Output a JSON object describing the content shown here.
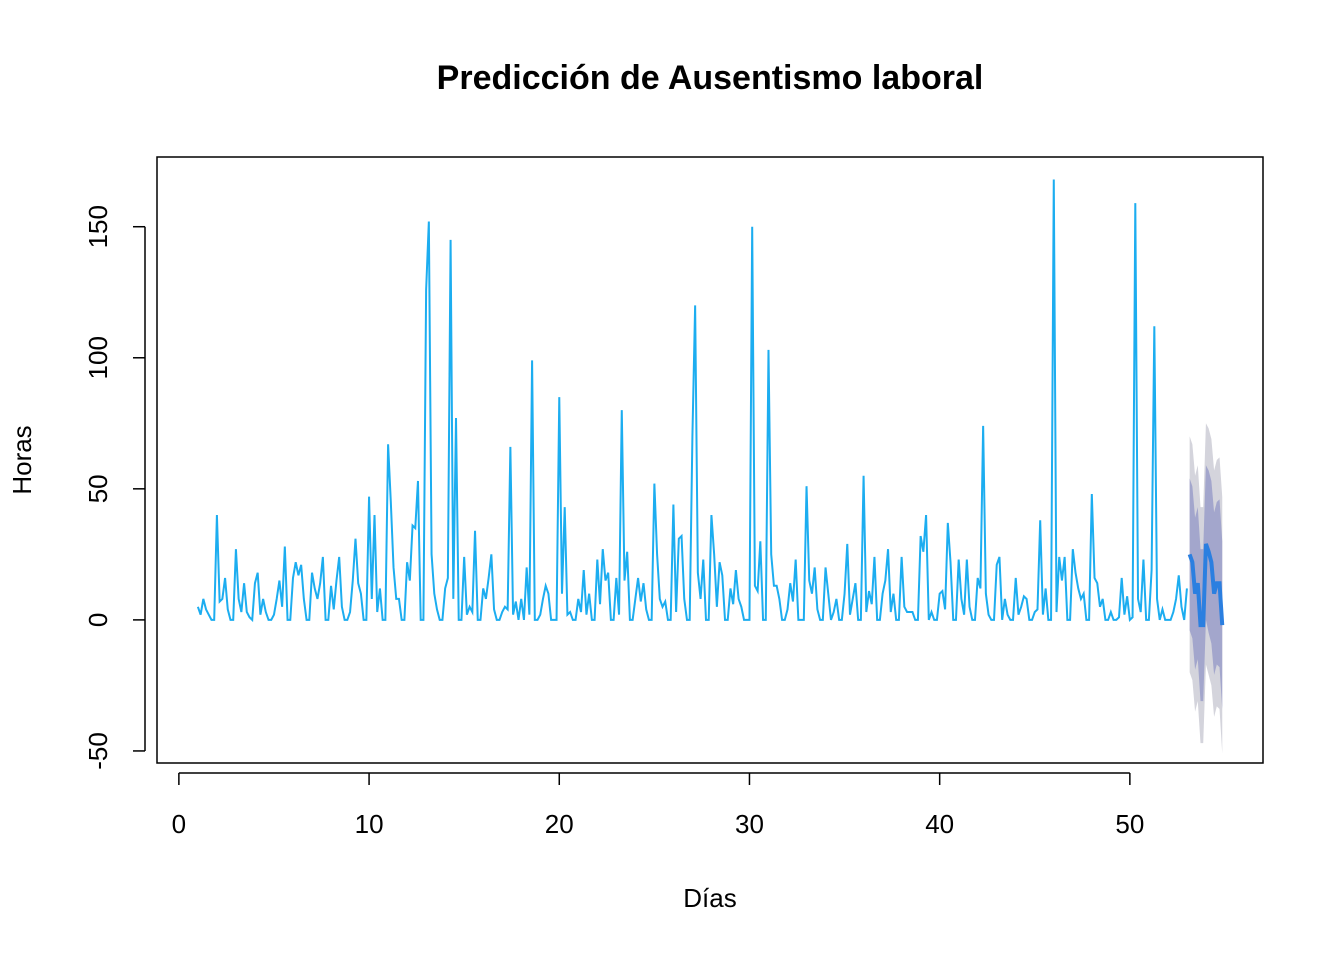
{
  "chart_data": {
    "type": "forecast-line",
    "title": "Predicción de Ausentismo laboral",
    "x_label": "Días",
    "y_label": "Horas",
    "xlim": [
      -1.15,
      57.0
    ],
    "ylim": [
      -54.6,
      176.6
    ],
    "xticks": [
      0,
      10,
      20,
      30,
      40,
      50
    ],
    "yticks": [
      -50,
      0,
      50,
      100,
      150
    ],
    "color": "#1cadf0",
    "x": [
      1,
      1.143,
      1.286,
      1.429,
      1.571,
      1.714,
      1.857,
      2,
      2.143,
      2.286,
      2.429,
      2.571,
      2.714,
      2.857,
      3,
      3.143,
      3.286,
      3.429,
      3.571,
      3.714,
      3.857,
      4,
      4.143,
      4.286,
      4.429,
      4.571,
      4.714,
      4.857,
      5,
      5.143,
      5.286,
      5.429,
      5.571,
      5.714,
      5.857,
      6,
      6.143,
      6.286,
      6.429,
      6.571,
      6.714,
      6.857,
      7,
      7.143,
      7.286,
      7.429,
      7.571,
      7.714,
      7.857,
      8,
      8.143,
      8.286,
      8.429,
      8.571,
      8.714,
      8.857,
      9,
      9.143,
      9.286,
      9.429,
      9.571,
      9.714,
      9.857,
      10,
      10.143,
      10.286,
      10.429,
      10.571,
      10.714,
      10.857,
      11,
      11.143,
      11.286,
      11.429,
      11.571,
      11.714,
      11.857,
      12,
      12.143,
      12.286,
      12.429,
      12.571,
      12.714,
      12.857,
      13,
      13.143,
      13.286,
      13.429,
      13.571,
      13.714,
      13.857,
      14,
      14.143,
      14.286,
      14.429,
      14.571,
      14.714,
      14.857,
      15,
      15.143,
      15.286,
      15.429,
      15.571,
      15.714,
      15.857,
      16,
      16.143,
      16.286,
      16.429,
      16.571,
      16.714,
      16.857,
      17,
      17.143,
      17.286,
      17.429,
      17.571,
      17.714,
      17.857,
      18,
      18.143,
      18.286,
      18.429,
      18.571,
      18.714,
      18.857,
      19,
      19.143,
      19.286,
      19.429,
      19.571,
      19.714,
      19.857,
      20,
      20.143,
      20.286,
      20.429,
      20.571,
      20.714,
      20.857,
      21,
      21.143,
      21.286,
      21.429,
      21.571,
      21.714,
      21.857,
      22,
      22.143,
      22.286,
      22.429,
      22.571,
      22.714,
      22.857,
      23,
      23.143,
      23.286,
      23.429,
      23.571,
      23.714,
      23.857,
      24,
      24.143,
      24.286,
      24.429,
      24.571,
      24.714,
      24.857,
      25,
      25.143,
      25.286,
      25.429,
      25.571,
      25.714,
      25.857,
      26,
      26.143,
      26.286,
      26.429,
      26.571,
      26.714,
      26.857,
      27,
      27.143,
      27.286,
      27.429,
      27.571,
      27.714,
      27.857,
      28,
      28.143,
      28.286,
      28.429,
      28.571,
      28.714,
      28.857,
      29,
      29.143,
      29.286,
      29.429,
      29.571,
      29.714,
      29.857,
      30,
      30.143,
      30.286,
      30.429,
      30.571,
      30.714,
      30.857,
      31,
      31.143,
      31.286,
      31.429,
      31.571,
      31.714,
      31.857,
      32,
      32.143,
      32.286,
      32.429,
      32.571,
      32.714,
      32.857,
      33,
      33.143,
      33.286,
      33.429,
      33.571,
      33.714,
      33.857,
      34,
      34.143,
      34.286,
      34.429,
      34.571,
      34.714,
      34.857,
      35,
      35.143,
      35.286,
      35.429,
      35.571,
      35.714,
      35.857,
      36,
      36.143,
      36.286,
      36.429,
      36.571,
      36.714,
      36.857,
      37,
      37.143,
      37.286,
      37.429,
      37.571,
      37.714,
      37.857,
      38,
      38.143,
      38.286,
      38.429,
      38.571,
      38.714,
      38.857,
      39,
      39.143,
      39.286,
      39.429,
      39.571,
      39.714,
      39.857,
      40,
      40.143,
      40.286,
      40.429,
      40.571,
      40.714,
      40.857,
      41,
      41.143,
      41.286,
      41.429,
      41.571,
      41.714,
      41.857,
      42,
      42.143,
      42.286,
      42.429,
      42.571,
      42.714,
      42.857,
      43,
      43.143,
      43.286,
      43.429,
      43.571,
      43.714,
      43.857,
      44,
      44.143,
      44.286,
      44.429,
      44.571,
      44.714,
      44.857,
      45,
      45.143,
      45.286,
      45.429,
      45.571,
      45.714,
      45.857,
      46,
      46.143,
      46.286,
      46.429,
      46.571,
      46.714,
      46.857,
      47,
      47.143,
      47.286,
      47.429,
      47.571,
      47.714,
      47.857,
      48,
      48.143,
      48.286,
      48.429,
      48.571,
      48.714,
      48.857,
      49,
      49.143,
      49.286,
      49.429,
      49.571,
      49.714,
      49.857,
      50,
      50.143,
      50.286,
      50.429,
      50.571,
      50.714,
      50.857,
      51,
      51.143,
      51.286,
      51.429,
      51.571,
      51.714,
      51.857,
      52,
      52.143,
      52.286,
      52.429,
      52.571,
      52.714,
      52.857,
      53
    ],
    "values": [
      5,
      2,
      8,
      4,
      2,
      0,
      0,
      40,
      7,
      8,
      16,
      4,
      0,
      0,
      27,
      8,
      3,
      14,
      3,
      1,
      0,
      14,
      18,
      2,
      8,
      3,
      0,
      0,
      2,
      8,
      15,
      5,
      28,
      0,
      0,
      16,
      22,
      17,
      21,
      8,
      0,
      0,
      18,
      12,
      8,
      14,
      24,
      0,
      0,
      13,
      4,
      15,
      24,
      5,
      0,
      0,
      3,
      15,
      31,
      14,
      10,
      0,
      0,
      47,
      8,
      40,
      3,
      12,
      0,
      0,
      67,
      45,
      20,
      8,
      8,
      0,
      0,
      22,
      15,
      36,
      35,
      53,
      0,
      0,
      126,
      152,
      25,
      10,
      4,
      0,
      0,
      12,
      16,
      145,
      8,
      77,
      0,
      0,
      24,
      2,
      5,
      3,
      34,
      0,
      0,
      12,
      8,
      16,
      25,
      4,
      0,
      0,
      3,
      5,
      4,
      66,
      2,
      7,
      0,
      8,
      0,
      20,
      2,
      99,
      0,
      0,
      2,
      8,
      13,
      10,
      0,
      0,
      0,
      85,
      10,
      43,
      2,
      3,
      0,
      0,
      8,
      3,
      19,
      2,
      10,
      0,
      0,
      23,
      6,
      27,
      15,
      18,
      0,
      0,
      16,
      2,
      80,
      15,
      26,
      0,
      0,
      8,
      16,
      7,
      14,
      4,
      0,
      0,
      52,
      25,
      8,
      5,
      7,
      0,
      0,
      44,
      3,
      31,
      32,
      8,
      0,
      0,
      70,
      120,
      18,
      8,
      23,
      0,
      0,
      40,
      25,
      5,
      22,
      17,
      0,
      0,
      12,
      6,
      19,
      8,
      5,
      0,
      0,
      0,
      150,
      13,
      11,
      30,
      0,
      0,
      103,
      25,
      13,
      13,
      8,
      0,
      0,
      4,
      14,
      7,
      23,
      0,
      0,
      0,
      51,
      15,
      10,
      20,
      4,
      0,
      0,
      20,
      10,
      0,
      3,
      8,
      0,
      0,
      10,
      29,
      2,
      8,
      14,
      0,
      0,
      55,
      3,
      11,
      6,
      24,
      0,
      0,
      10,
      15,
      27,
      3,
      10,
      0,
      0,
      24,
      5,
      3,
      3,
      3,
      0,
      0,
      32,
      26,
      40,
      0,
      3,
      0,
      0,
      10,
      11,
      4,
      37,
      22,
      0,
      0,
      23,
      8,
      2,
      23,
      5,
      0,
      0,
      16,
      12,
      74,
      10,
      2,
      0,
      0,
      21,
      24,
      0,
      8,
      2,
      0,
      0,
      16,
      2,
      5,
      9,
      8,
      0,
      0,
      3,
      4,
      38,
      2,
      12,
      0,
      0,
      168,
      3,
      24,
      15,
      24,
      0,
      0,
      27,
      18,
      12,
      8,
      10,
      0,
      0,
      48,
      16,
      14,
      5,
      8,
      0,
      0,
      3,
      0,
      0,
      1,
      16,
      2,
      9,
      0,
      1,
      159,
      8,
      3,
      23,
      0,
      0,
      19,
      112,
      8,
      0,
      4,
      0,
      0,
      0,
      3,
      8,
      17,
      5,
      0,
      12
    ],
    "forecast": {
      "color": "#2b7fe0",
      "band80_color": "#a3a6cc",
      "band95_color": "#d4d4dc",
      "x": [
        53.143,
        53.286,
        53.429,
        53.571,
        53.714,
        53.857,
        54,
        54.143,
        54.286,
        54.429,
        54.571,
        54.714,
        54.857
      ],
      "mean": [
        25,
        22,
        10,
        14,
        -2,
        -2,
        29,
        26,
        22,
        10,
        14,
        14,
        -2
      ],
      "lo80": [
        -4,
        -7,
        -19,
        -15,
        -31,
        -31,
        0,
        -5,
        -9,
        -21,
        -17,
        -18,
        -34
      ],
      "hi80": [
        54,
        51,
        39,
        43,
        27,
        27,
        59,
        57,
        53,
        41,
        45,
        46,
        30
      ],
      "lo95": [
        -20,
        -23,
        -35,
        -31,
        -47,
        -47,
        -17,
        -21,
        -25,
        -37,
        -33,
        -34,
        -51
      ],
      "hi95": [
        70,
        67,
        55,
        59,
        43,
        43,
        75,
        73,
        69,
        57,
        61,
        62,
        47
      ]
    }
  }
}
